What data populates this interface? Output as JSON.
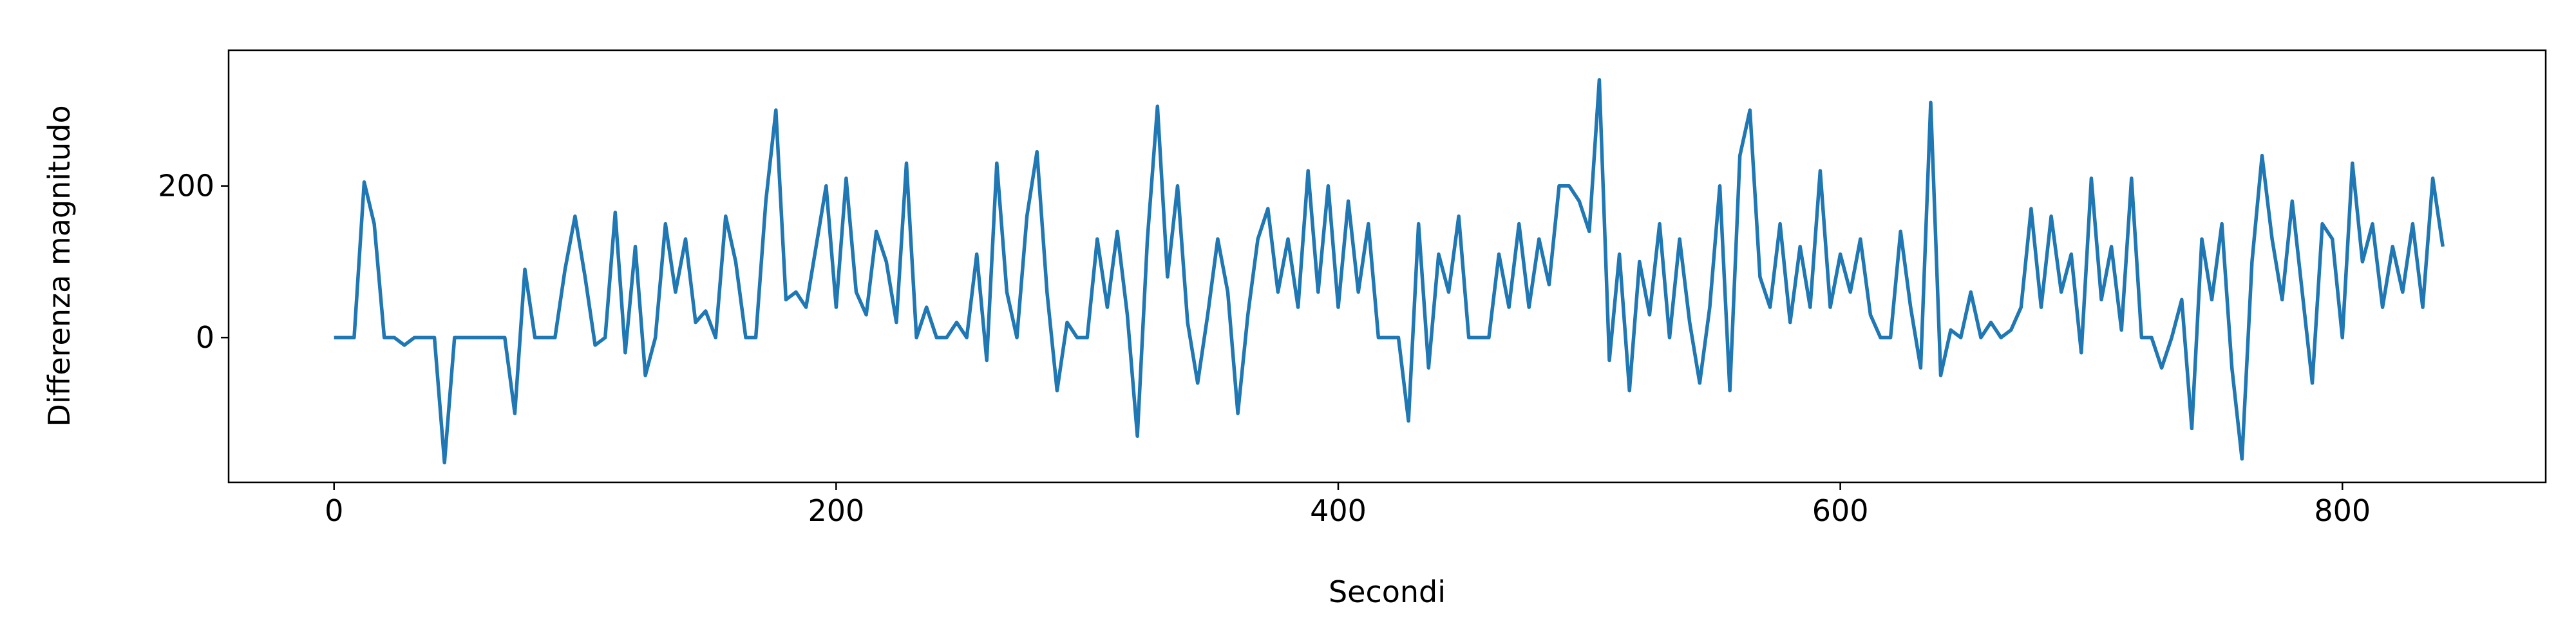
{
  "chart_data": {
    "type": "line",
    "xlabel": "Secondi",
    "ylabel": "Differenza magnitudo",
    "xlim": [
      -42,
      881
    ],
    "ylim": [
      -191,
      379
    ],
    "xticks": [
      0,
      200,
      400,
      600,
      800
    ],
    "yticks": [
      0,
      200
    ],
    "grid": false,
    "x": [
      0,
      4,
      8,
      12,
      16,
      20,
      24,
      28,
      32,
      36,
      40,
      44,
      48,
      52,
      56,
      60,
      64,
      68,
      72,
      76,
      80,
      84,
      88,
      92,
      96,
      100,
      104,
      108,
      112,
      116,
      120,
      124,
      128,
      132,
      136,
      140,
      144,
      148,
      152,
      156,
      160,
      164,
      168,
      172,
      176,
      180,
      184,
      188,
      192,
      196,
      200,
      204,
      208,
      212,
      216,
      220,
      224,
      228,
      232,
      236,
      240,
      244,
      248,
      252,
      256,
      260,
      264,
      268,
      272,
      276,
      280,
      284,
      288,
      292,
      296,
      300,
      304,
      308,
      312,
      316,
      320,
      324,
      328,
      332,
      336,
      340,
      344,
      348,
      352,
      356,
      360,
      364,
      368,
      372,
      376,
      380,
      384,
      388,
      392,
      396,
      400,
      404,
      408,
      412,
      416,
      420,
      424,
      428,
      432,
      436,
      440,
      444,
      448,
      452,
      456,
      460,
      464,
      468,
      472,
      476,
      480,
      484,
      488,
      492,
      496,
      500,
      504,
      508,
      512,
      516,
      520,
      524,
      528,
      532,
      536,
      540,
      544,
      548,
      552,
      556,
      560,
      564,
      568,
      572,
      576,
      580,
      584,
      588,
      592,
      596,
      600,
      604,
      608,
      612,
      616,
      620,
      624,
      628,
      632,
      636,
      640,
      644,
      648,
      652,
      656,
      660,
      664,
      668,
      672,
      676,
      680,
      684,
      688,
      692,
      696,
      700,
      704,
      708,
      712,
      716,
      720,
      724,
      728,
      732,
      736,
      740,
      744,
      748,
      752,
      756,
      760,
      764,
      768,
      772,
      776,
      780,
      784,
      788,
      792,
      796,
      800,
      804,
      808,
      812,
      816,
      820,
      824,
      828,
      832,
      836,
      840
    ],
    "series": [
      {
        "name": "Differenza magnitudo",
        "color": "#1f77b4",
        "values": [
          0,
          0,
          0,
          205,
          150,
          0,
          0,
          -10,
          0,
          0,
          0,
          -165,
          0,
          0,
          0,
          0,
          0,
          0,
          -100,
          90,
          0,
          0,
          0,
          90,
          160,
          80,
          -10,
          0,
          165,
          -20,
          120,
          -50,
          0,
          150,
          60,
          130,
          20,
          35,
          0,
          160,
          100,
          0,
          0,
          180,
          300,
          50,
          60,
          40,
          120,
          200,
          40,
          210,
          60,
          30,
          140,
          100,
          20,
          230,
          0,
          40,
          0,
          0,
          20,
          0,
          110,
          -30,
          230,
          60,
          0,
          160,
          245,
          60,
          -70,
          20,
          0,
          0,
          130,
          40,
          140,
          30,
          -130,
          130,
          305,
          80,
          200,
          20,
          -60,
          30,
          130,
          60,
          -100,
          30,
          130,
          170,
          60,
          130,
          40,
          220,
          60,
          200,
          40,
          180,
          60,
          150,
          0,
          0,
          0,
          -110,
          150,
          -40,
          110,
          60,
          160,
          0,
          0,
          0,
          110,
          40,
          150,
          40,
          130,
          70,
          200,
          200,
          180,
          140,
          340,
          -30,
          110,
          -70,
          100,
          30,
          150,
          0,
          130,
          20,
          -60,
          40,
          200,
          -70,
          240,
          300,
          80,
          40,
          150,
          20,
          120,
          40,
          220,
          40,
          110,
          60,
          130,
          30,
          0,
          0,
          140,
          40,
          -40,
          310,
          -50,
          10,
          0,
          60,
          0,
          20,
          0,
          10,
          40,
          170,
          40,
          160,
          60,
          110,
          -20,
          210,
          50,
          120,
          10,
          210,
          0,
          0,
          -40,
          0,
          50,
          -120,
          130,
          50,
          150,
          -40,
          -160,
          100,
          240,
          130,
          50,
          180,
          60,
          -60,
          150,
          130,
          0,
          230,
          100,
          150,
          40,
          120,
          60,
          150,
          40,
          210,
          120
        ]
      }
    ]
  }
}
